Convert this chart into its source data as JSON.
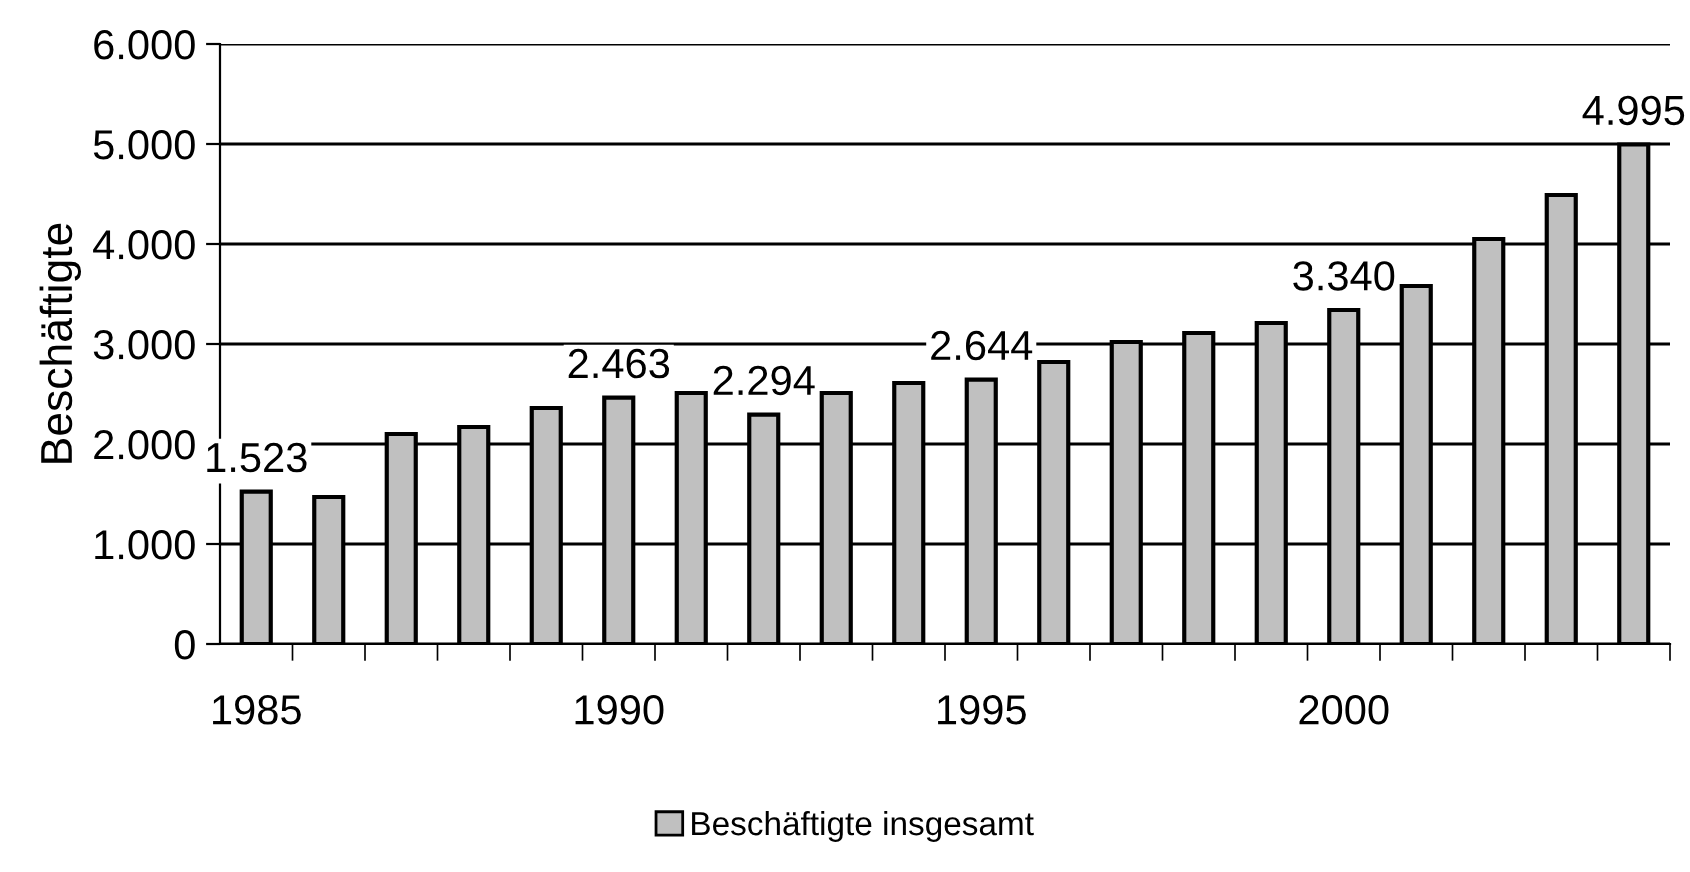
{
  "chart_data": {
    "type": "bar",
    "ylabel": "Beschäftigte",
    "categories": [
      "1985",
      null,
      null,
      null,
      null,
      "1990",
      null,
      null,
      null,
      null,
      "1995",
      null,
      null,
      null,
      null,
      "2000",
      null,
      null,
      null,
      null
    ],
    "series": [
      {
        "name": "Beschäftigte insgesamt",
        "color": "#c0c0c0",
        "values": [
          1523,
          1470,
          2100,
          2170,
          2360,
          2463,
          2510,
          2294,
          2510,
          2610,
          2644,
          2820,
          3020,
          3110,
          3210,
          3340,
          3580,
          4050,
          4490,
          4995
        ],
        "value_labels": [
          "1.523",
          null,
          null,
          null,
          null,
          "2.463",
          null,
          "2.294",
          null,
          null,
          "2.644",
          null,
          null,
          null,
          null,
          "3.340",
          null,
          null,
          null,
          "4.995"
        ]
      }
    ],
    "ylim": [
      0,
      6000
    ],
    "yticks": [
      0,
      {
        "value": 1000,
        "label": "1.000"
      },
      {
        "value": 2000,
        "label": "2.000"
      },
      {
        "value": 3000,
        "label": "3.000"
      },
      {
        "value": 4000,
        "label": "4.000"
      },
      {
        "value": 5000,
        "label": "5.000"
      },
      {
        "value": 6000,
        "label": "6.000"
      }
    ],
    "grid": "y",
    "legend": "bottom"
  }
}
